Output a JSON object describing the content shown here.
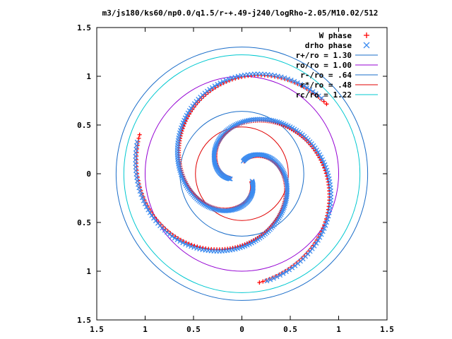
{
  "chart_data": {
    "type": "scatter",
    "title": "m3/js180/ks60/np0.0/q1.5/r-+.49-j240/logRho-2.05/M10.02/512",
    "xlim": [
      -1.5,
      1.5
    ],
    "ylim": [
      -1.5,
      1.5
    ],
    "xticks": [
      -1.5,
      -1,
      -0.5,
      0,
      0.5,
      1,
      1.5
    ],
    "xtick_labels": [
      "1.5",
      "1",
      "0.5",
      "0",
      "0.5",
      "1",
      "1.5"
    ],
    "yticks": [
      1.5,
      1,
      0.5,
      0,
      -0.5,
      -1,
      -1.5
    ],
    "ytick_labels": [
      "1.5",
      "1",
      "0.5",
      "0",
      "0.5",
      "1",
      "1.5"
    ],
    "grid": false,
    "legend_position": "top-right",
    "circles": [
      {
        "name": "r+/ro = 1.30",
        "radius": 1.3,
        "color": "#1a6dc9"
      },
      {
        "name": "ro/ro = 1.00",
        "radius": 1.0,
        "color": "#9400d3"
      },
      {
        "name": "r-/ro = .64",
        "radius": 0.64,
        "color": "#1a6dc9"
      },
      {
        "name": "r*/ro = .48",
        "radius": 0.48,
        "color": "#e00000"
      },
      {
        "name": "rc/ro = 1.22",
        "radius": 1.22,
        "color": "#00c8d0"
      }
    ],
    "series": [
      {
        "name": "W phase",
        "marker": "plus",
        "color": "#ff0000",
        "arms": [
          {
            "t0": 0,
            "t1": 1.6,
            "density": 140
          },
          {
            "t0": 0,
            "t1": 1.6,
            "density": 140
          },
          {
            "t0": 0,
            "t1": 1.6,
            "density": 140
          }
        ],
        "spiral": {
          "r0": 0.13,
          "k": 0.56,
          "phase_deg": [
            80,
            200,
            320
          ]
        }
      },
      {
        "name": "drho phase",
        "marker": "cross",
        "color": "#3c8cf0",
        "spiral": {
          "r0": 0.13,
          "k": 0.56,
          "phase_deg": [
            84,
            204,
            324
          ]
        }
      }
    ]
  }
}
